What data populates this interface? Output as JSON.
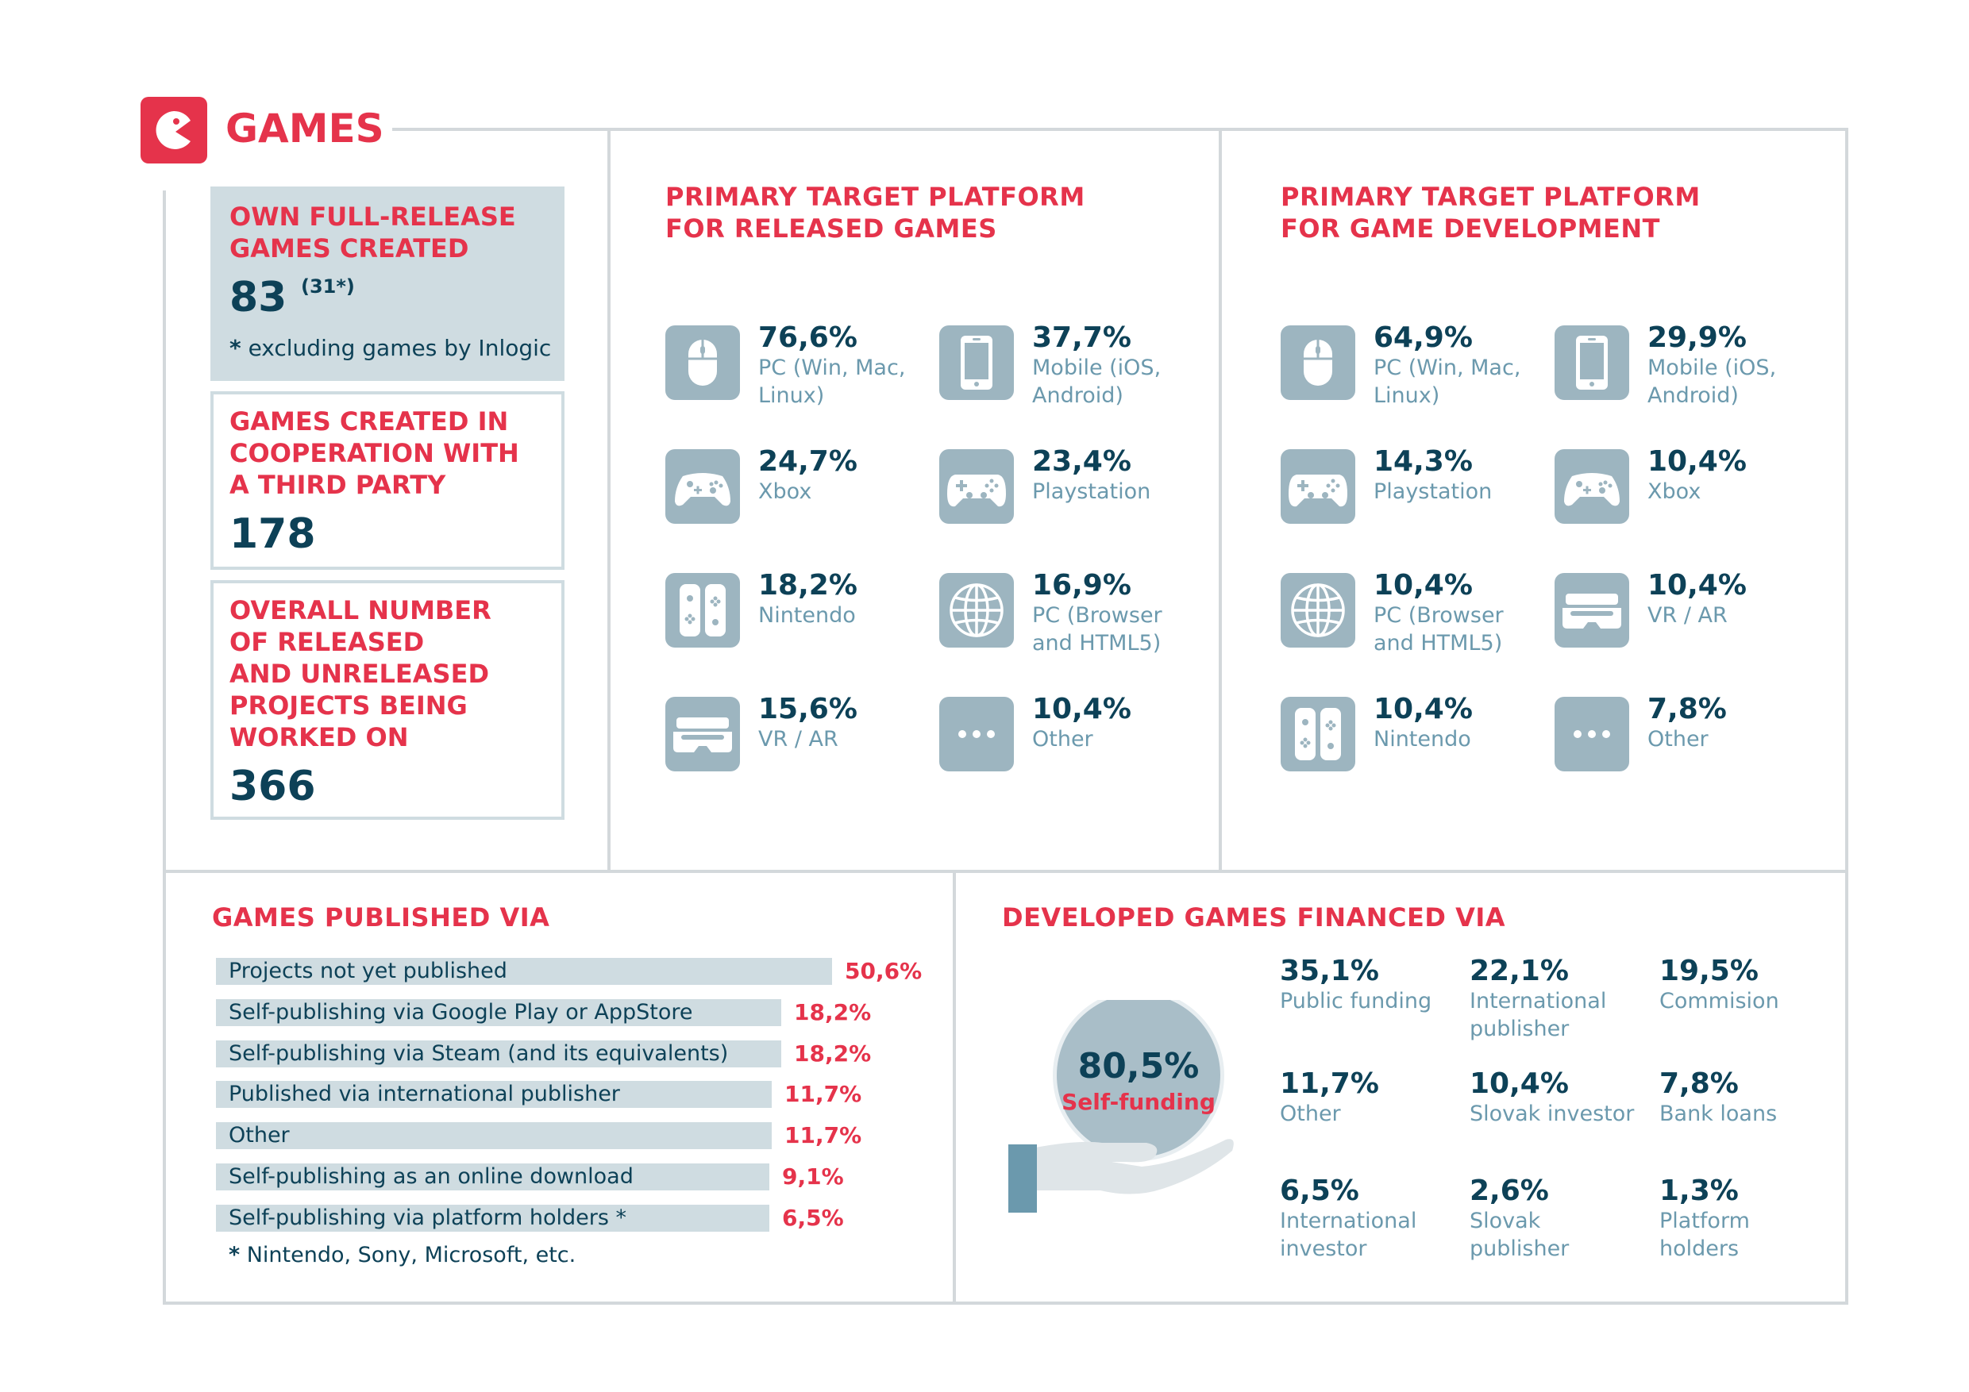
{
  "header": {
    "title": "GAMES",
    "accent": "#e5334b"
  },
  "left_stats": {
    "own_games": {
      "label_lines": [
        "OWN FULL-RELEASE",
        "GAMES CREATED"
      ],
      "value": "83",
      "sup": "(31*)",
      "note_star": "*",
      "note": "excluding games by Inlogic"
    },
    "coop_games": {
      "label_lines": [
        "GAMES CREATED IN",
        "COOPERATION WITH",
        "A THIRD PARTY"
      ],
      "value": "178"
    },
    "projects": {
      "label_lines": [
        "OVERALL NUMBER",
        "OF RELEASED",
        "AND UNRELEASED",
        "PROJECTS BEING",
        "WORKED ON"
      ],
      "value": "366"
    }
  },
  "released_platforms": {
    "title_lines": [
      "PRIMARY TARGET PLATFORM",
      "FOR RELEASED GAMES"
    ],
    "items": [
      {
        "pct": "76,6%",
        "label_lines": [
          "PC (Win, Mac,",
          "Linux)"
        ],
        "icon": "mouse-icon"
      },
      {
        "pct": "37,7%",
        "label_lines": [
          "Mobile (iOS,",
          "Android)"
        ],
        "icon": "mobile-icon"
      },
      {
        "pct": "24,7%",
        "label_lines": [
          "Xbox"
        ],
        "icon": "xbox-controller-icon"
      },
      {
        "pct": "23,4%",
        "label_lines": [
          "Playstation"
        ],
        "icon": "playstation-controller-icon"
      },
      {
        "pct": "18,2%",
        "label_lines": [
          "Nintendo"
        ],
        "icon": "nintendo-switch-icon"
      },
      {
        "pct": "16,9%",
        "label_lines": [
          "PC (Browser",
          "and HTML5)"
        ],
        "icon": "globe-icon"
      },
      {
        "pct": "15,6%",
        "label_lines": [
          "VR / AR"
        ],
        "icon": "vr-headset-icon"
      },
      {
        "pct": "10,4%",
        "label_lines": [
          "Other"
        ],
        "icon": "dots-icon"
      }
    ]
  },
  "development_platforms": {
    "title_lines": [
      "PRIMARY TARGET PLATFORM",
      "FOR GAME DEVELOPMENT"
    ],
    "items": [
      {
        "pct": "64,9%",
        "label_lines": [
          "PC (Win, Mac,",
          "Linux)"
        ],
        "icon": "mouse-icon"
      },
      {
        "pct": "29,9%",
        "label_lines": [
          "Mobile (iOS,",
          "Android)"
        ],
        "icon": "mobile-icon"
      },
      {
        "pct": "14,3%",
        "label_lines": [
          "Playstation"
        ],
        "icon": "playstation-controller-icon"
      },
      {
        "pct": "10,4%",
        "label_lines": [
          "Xbox"
        ],
        "icon": "xbox-controller-icon"
      },
      {
        "pct": "10,4%",
        "label_lines": [
          "PC (Browser",
          "and HTML5)"
        ],
        "icon": "globe-icon"
      },
      {
        "pct": "10,4%",
        "label_lines": [
          "VR / AR"
        ],
        "icon": "vr-headset-icon"
      },
      {
        "pct": "10,4%",
        "label_lines": [
          "Nintendo"
        ],
        "icon": "nintendo-switch-icon"
      },
      {
        "pct": "7,8%",
        "label_lines": [
          "Other"
        ],
        "icon": "dots-icon"
      }
    ]
  },
  "published_via": {
    "title": "GAMES PUBLISHED VIA",
    "footnote_star": "*",
    "footnote": "Nintendo, Sony, Microsoft, etc."
  },
  "financed_via": {
    "title": "DEVELOPED GAMES FINANCED VIA",
    "highlight": {
      "pct": "80,5%",
      "label": "Self-funding"
    },
    "items": [
      {
        "pct": "35,1%",
        "label_lines": [
          "Public funding"
        ]
      },
      {
        "pct": "22,1%",
        "label_lines": [
          "International",
          "publisher"
        ]
      },
      {
        "pct": "19,5%",
        "label_lines": [
          "Commision"
        ]
      },
      {
        "pct": "11,7%",
        "label_lines": [
          "Other"
        ]
      },
      {
        "pct": "10,4%",
        "label_lines": [
          "Slovak investor"
        ]
      },
      {
        "pct": "7,8%",
        "label_lines": [
          "Bank loans"
        ]
      },
      {
        "pct": "6,5%",
        "label_lines": [
          "International",
          "investor"
        ]
      },
      {
        "pct": "2,6%",
        "label_lines": [
          "Slovak",
          "publisher"
        ]
      },
      {
        "pct": "1,3%",
        "label_lines": [
          "Platform",
          "holders"
        ]
      }
    ]
  },
  "chart_data": {
    "type": "bar",
    "title": "GAMES PUBLISHED VIA",
    "categories": [
      "Projects not yet published",
      "Self-publishing via Google Play or AppStore",
      "Self-publishing via Steam (and its equivalents)",
      "Published via international publisher",
      "Other",
      "Self-publishing as an online download",
      "Self-publishing via platform holders *"
    ],
    "values": [
      50.6,
      18.2,
      18.2,
      11.7,
      11.7,
      9.1,
      6.5
    ],
    "value_labels": [
      "50,6%",
      "18,2%",
      "18,2%",
      "11,7%",
      "11,7%",
      "9,1%",
      "6,5%"
    ],
    "orientation": "horizontal",
    "bar_color": "#cfdce1",
    "label_color": "#e5334b"
  }
}
